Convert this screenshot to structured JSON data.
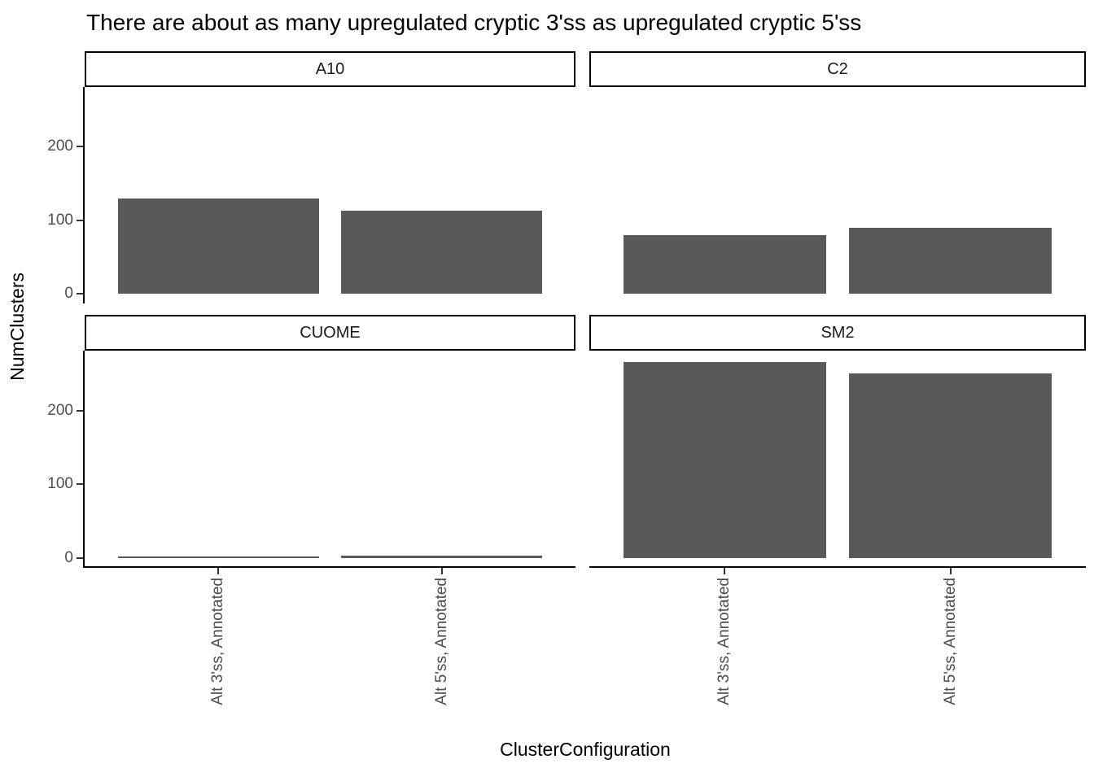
{
  "title": "There are about as many upregulated cryptic 3'ss as upregulated cryptic 5'ss",
  "chart_data": {
    "type": "bar",
    "title": "There are about as many upregulated cryptic 3'ss as upregulated cryptic 5'ss",
    "xlabel": "ClusterConfiguration",
    "ylabel": "NumClusters",
    "categories": [
      "Alt 3'ss, Annotated",
      "Alt 5'ss, Annotated"
    ],
    "facets": [
      {
        "label": "A10",
        "values": [
          130,
          113
        ]
      },
      {
        "label": "C2",
        "values": [
          80,
          90
        ]
      },
      {
        "label": "CUOME",
        "values": [
          2,
          4
        ]
      },
      {
        "label": "SM2",
        "values": [
          266,
          250
        ]
      }
    ],
    "y_ticks": [
      0,
      100,
      200
    ],
    "ylim": [
      -13,
      281
    ],
    "grid": "off",
    "legend": "none",
    "bar_color": "#595959",
    "axis_text_color": "#4D4D4D"
  }
}
